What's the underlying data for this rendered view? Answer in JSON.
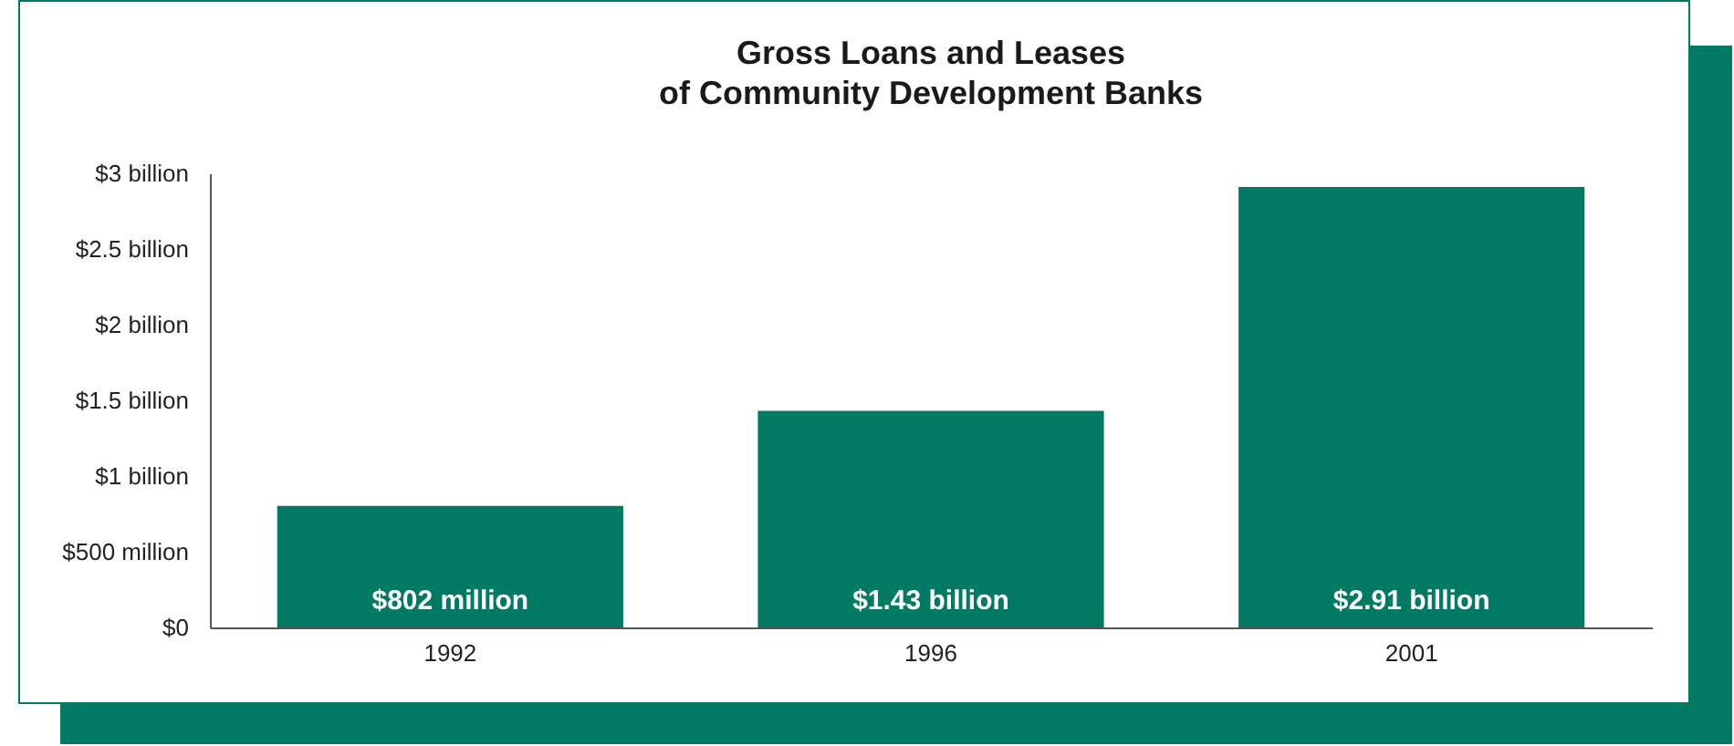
{
  "chart_data": {
    "type": "bar",
    "title": "Gross Loans and Leases\nof Community Development Banks",
    "categories": [
      "1992",
      "1996",
      "2001"
    ],
    "values": [
      802000000,
      1430000000,
      2910000000
    ],
    "value_labels": [
      "$802 million",
      "$1.43 billion",
      "$2.91 billion"
    ],
    "color": "#007a63",
    "ylim": [
      0,
      3000000000
    ],
    "yticks": [
      {
        "value": 0,
        "label": "$0"
      },
      {
        "value": 500000000,
        "label": "$500 million"
      },
      {
        "value": 1000000000,
        "label": "$1 billion"
      },
      {
        "value": 1500000000,
        "label": "$1.5 billion"
      },
      {
        "value": 2000000000,
        "label": "$2 billion"
      },
      {
        "value": 2500000000,
        "label": "$2.5 billion"
      },
      {
        "value": 3000000000,
        "label": "$3 billion"
      }
    ],
    "grid": false
  }
}
